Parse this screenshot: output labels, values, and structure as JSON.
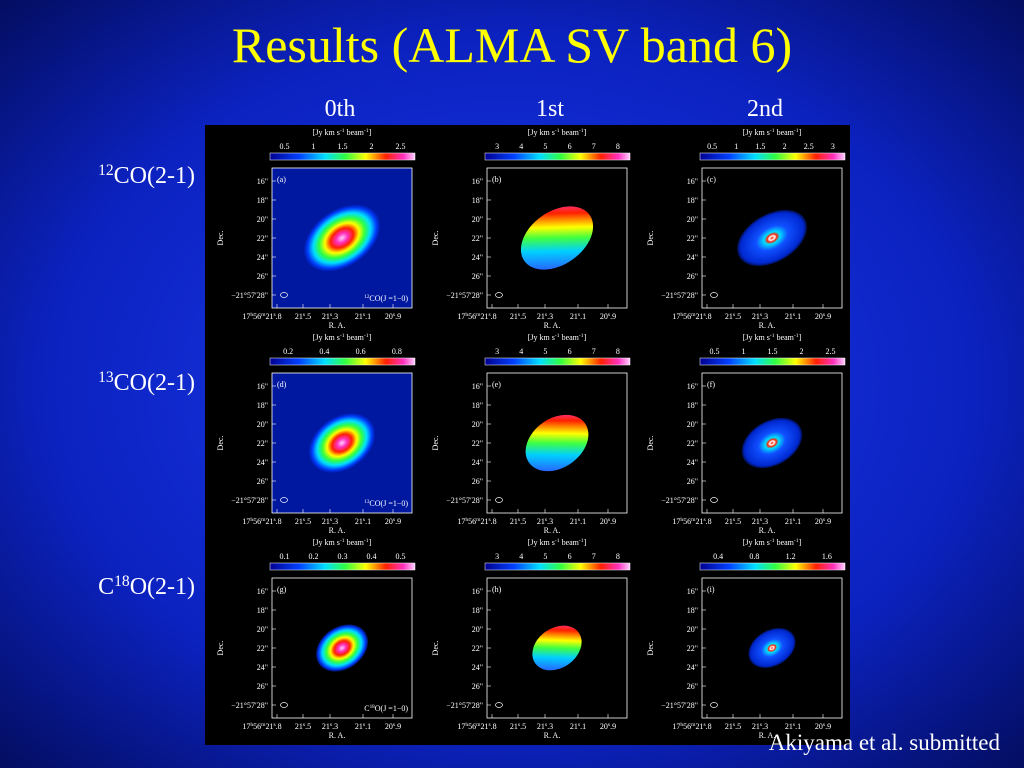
{
  "title": "Results (ALMA SV band 6)",
  "columns": [
    "0th",
    "1st",
    "2nd"
  ],
  "rows": [
    {
      "sup": "12",
      "text": "CO(2-1)"
    },
    {
      "sup": "13",
      "text": "CO(2-1)"
    },
    {
      "pre": "C",
      "sup": "18",
      "text": "O(2-1)"
    }
  ],
  "axes": {
    "y_label": "Dec.",
    "x_label": "R. A.",
    "y_ticks": [
      "16\"",
      "18\"",
      "20\"",
      "22\"",
      "24\"",
      "26\"",
      "−21°57′28\""
    ],
    "x_ticks": [
      [
        "17",
        "h",
        "56",
        "m",
        "21",
        "s",
        ".8"
      ],
      [
        "21",
        "s",
        ".5"
      ],
      [
        "21",
        "s",
        ".3"
      ],
      [
        "21",
        "s",
        ".1"
      ],
      [
        "20",
        "s",
        ".9"
      ]
    ]
  },
  "colorbar_unit": [
    "[Jy km s",
    "-1",
    " beam",
    "-1",
    "]"
  ],
  "panels": [
    {
      "label": "(a)",
      "colorbar_ticks": [
        "0.5",
        "1",
        "1.5",
        "2",
        "2.5"
      ],
      "line": {
        "sup": "12",
        "text": "CO(J =1−0)"
      }
    },
    {
      "label": "(b)",
      "colorbar_ticks": [
        "3",
        "4",
        "5",
        "6",
        "7",
        "8"
      ]
    },
    {
      "label": "(c)",
      "colorbar_ticks": [
        "0.5",
        "1",
        "1.5",
        "2",
        "2.5",
        "3"
      ]
    },
    {
      "label": "(d)",
      "colorbar_ticks": [
        "0.2",
        "0.4",
        "0.6",
        "0.8"
      ],
      "line": {
        "sup": "13",
        "text": "CO(J =1−0)"
      }
    },
    {
      "label": "(e)",
      "colorbar_ticks": [
        "3",
        "4",
        "5",
        "6",
        "7",
        "8"
      ]
    },
    {
      "label": "(f)",
      "colorbar_ticks": [
        "0.5",
        "1",
        "1.5",
        "2",
        "2.5"
      ]
    },
    {
      "label": "(g)",
      "colorbar_ticks": [
        "0.1",
        "0.2",
        "0.3",
        "0.4",
        "0.5"
      ],
      "line": {
        "pre": "C",
        "sup": "18",
        "text": "O(J =1−0)"
      }
    },
    {
      "label": "(h)",
      "colorbar_ticks": [
        "3",
        "4",
        "5",
        "6",
        "7",
        "8"
      ]
    },
    {
      "label": "(i)",
      "colorbar_ticks": [
        "0.4",
        "0.8",
        "1.2",
        "1.6"
      ]
    }
  ],
  "credit": "Akiyama et al. submitted"
}
